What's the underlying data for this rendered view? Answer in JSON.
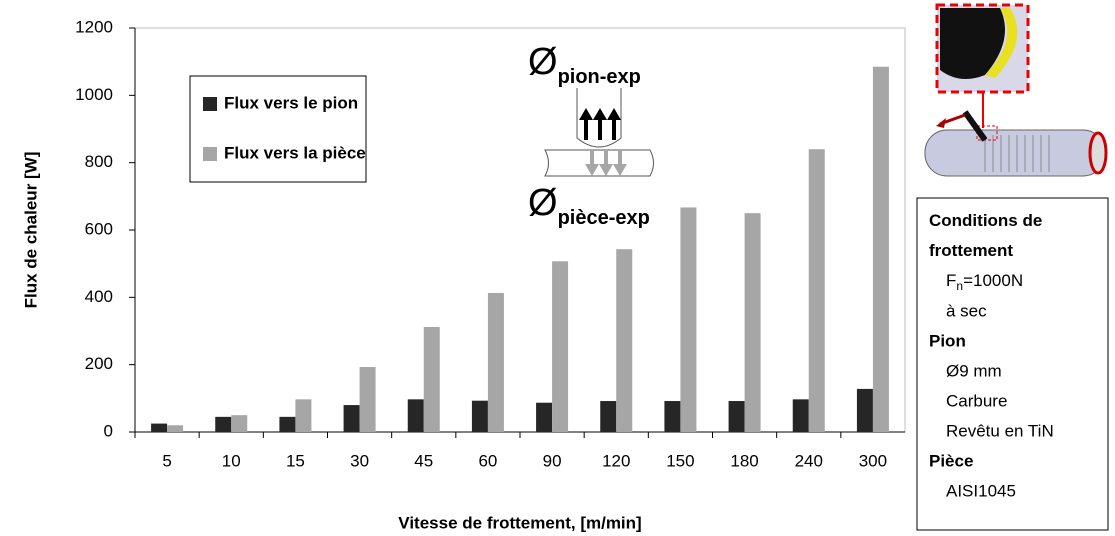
{
  "chart_data": {
    "type": "bar",
    "categories": [
      "5",
      "10",
      "15",
      "30",
      "45",
      "60",
      "90",
      "120",
      "150",
      "180",
      "240",
      "300"
    ],
    "series": [
      {
        "name": "Flux vers le pion",
        "color": "#262626",
        "values": [
          25,
          45,
          45,
          80,
          97,
          93,
          87,
          92,
          92,
          92,
          97,
          128
        ]
      },
      {
        "name": "Flux vers la pièce",
        "color": "#a6a6a6",
        "values": [
          20,
          50,
          97,
          193,
          312,
          413,
          507,
          543,
          667,
          650,
          840,
          1085
        ]
      }
    ],
    "ylim": [
      0,
      1200
    ],
    "yticks": [
      0,
      200,
      400,
      600,
      800,
      1000,
      1200
    ],
    "y_label": "Flux de chaleur [W]",
    "x_label": "Vitesse de frottement, [m/min]",
    "annotations": [
      {
        "symbol": "Ø",
        "subscript": "pion-exp"
      },
      {
        "symbol": "Ø",
        "subscript": "pièce-exp"
      }
    ]
  },
  "conditions": {
    "title": "Conditions de frottement",
    "force": {
      "symbol": "F",
      "subscript": "n",
      "rest": "=1000N"
    },
    "lines1": [
      "à sec"
    ],
    "pion_title": "Pion",
    "pion": [
      "Ø9 mm",
      "Carbure",
      "Revêtu en TiN"
    ],
    "piece_title": "Pièce",
    "piece": [
      "AISI1045"
    ]
  }
}
